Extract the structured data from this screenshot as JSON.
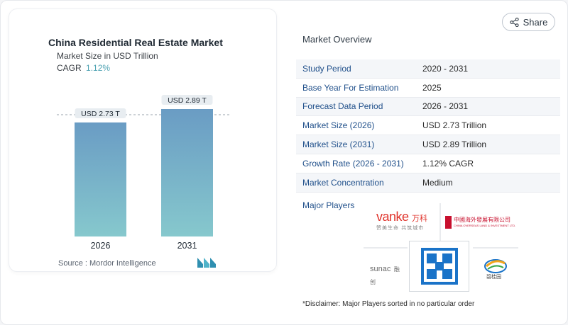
{
  "chart": {
    "title": "China Residential Real Estate Market",
    "subtitle": "Market Size in USD Trillion",
    "cagr_label": "CAGR",
    "cagr_value": "1.12%",
    "source": "Source :  Mordor Intelligence"
  },
  "chart_data": {
    "type": "bar",
    "title": "China Residential Real Estate Market",
    "subtitle": "Market Size in USD Trillion",
    "categories": [
      "2026",
      "2031"
    ],
    "values": [
      2.73,
      2.89
    ],
    "data_labels": [
      "USD 2.73 T",
      "USD 2.89 T"
    ],
    "ylim": [
      0,
      3.2
    ],
    "grid": false,
    "colors": {
      "bar_top": "#6a9cc4",
      "bar_bottom": "#86c8cd"
    }
  },
  "share": {
    "label": "Share"
  },
  "overview": {
    "title": "Market Overview",
    "rows": [
      {
        "key": "Study Period",
        "value": "2020 - 2031"
      },
      {
        "key": "Base Year For Estimation",
        "value": "2025"
      },
      {
        "key": "Forecast Data Period",
        "value": "2026 - 2031"
      },
      {
        "key": "Market Size (2026)",
        "value": "USD 2.73 Trillion"
      },
      {
        "key": "Market Size (2031)",
        "value": "USD 2.89 Trillion"
      },
      {
        "key": "Growth Rate (2026 - 2031)",
        "value": "1.12% CAGR"
      },
      {
        "key": "Market Concentration",
        "value": "Medium"
      }
    ]
  },
  "players": {
    "label": "Major Players",
    "vanke_text": "vanke",
    "vanke_cn": "万科",
    "vanke_slogan": "赞美生命 共筑城市",
    "coli_cn": "中國海外發展有限公司",
    "coli_en": "CHINA OVERSEAS LAND & INVESTMENT LTD.",
    "sunac_text": "sunac",
    "sunac_cn": "融创",
    "cscec_text": "CSCEC",
    "country_garden_cn": "碧桂园"
  },
  "disclaimer": "*Disclaimer: Major Players sorted in no particular order",
  "colors": {
    "accent": "#4fa3b3",
    "key_text": "#1f4f8a",
    "vanke_red": "#e0332b",
    "cscec_blue": "#1a73c8"
  }
}
